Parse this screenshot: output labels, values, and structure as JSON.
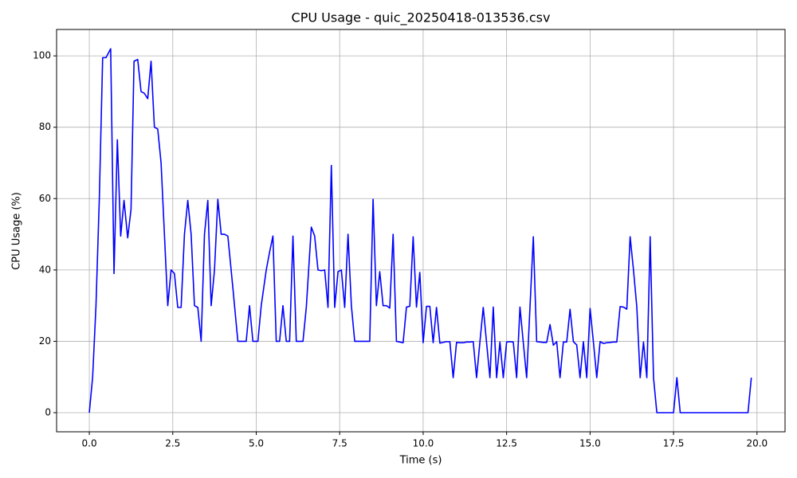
{
  "chart_data": {
    "type": "line",
    "title": "CPU Usage - quic_20250418-013536.csv",
    "x_label": "Time (s)",
    "y_label": "CPU Usage (%)",
    "x": [
      0,
      0.1,
      0.2,
      0.3,
      0.4,
      0.5,
      0.64,
      0.74,
      0.84,
      0.94,
      1.04,
      1.15,
      1.25,
      1.34,
      1.45,
      1.55,
      1.65,
      1.75,
      1.85,
      1.95,
      2.05,
      2.15,
      2.25,
      2.35,
      2.45,
      2.55,
      2.65,
      2.75,
      2.85,
      2.95,
      3.05,
      3.15,
      3.25,
      3.35,
      3.45,
      3.55,
      3.65,
      3.75,
      3.85,
      3.95,
      4.05,
      4.15,
      4.3,
      4.45,
      4.55,
      4.7,
      4.8,
      4.9,
      5.05,
      5.15,
      5.3,
      5.4,
      5.5,
      5.6,
      5.7,
      5.8,
      5.9,
      6.0,
      6.1,
      6.2,
      6.3,
      6.4,
      6.5,
      6.65,
      6.75,
      6.85,
      6.95,
      7.05,
      7.15,
      7.25,
      7.35,
      7.45,
      7.55,
      7.65,
      7.75,
      7.85,
      7.95,
      8.4,
      8.5,
      8.6,
      8.7,
      8.8,
      8.9,
      9.0,
      9.1,
      9.2,
      9.3,
      9.4,
      9.5,
      9.6,
      9.7,
      9.8,
      9.9,
      10.0,
      10.1,
      10.2,
      10.3,
      10.4,
      10.5,
      10.6,
      10.7,
      10.8,
      10.9,
      11.0,
      11.1,
      11.2,
      11.3,
      11.4,
      11.5,
      11.6,
      11.7,
      11.8,
      11.9,
      12.0,
      12.1,
      12.2,
      12.3,
      12.4,
      12.5,
      12.6,
      12.7,
      12.8,
      12.9,
      13.0,
      13.1,
      13.2,
      13.3,
      13.4,
      13.5,
      13.6,
      13.7,
      13.8,
      13.9,
      14.0,
      14.1,
      14.2,
      14.3,
      14.4,
      14.5,
      14.6,
      14.7,
      14.8,
      14.9,
      15.0,
      15.1,
      15.2,
      15.3,
      15.4,
      15.5,
      15.6,
      15.7,
      15.8,
      15.9,
      16.0,
      16.1,
      16.2,
      16.3,
      16.4,
      16.5,
      16.6,
      16.7,
      16.8,
      16.9,
      17.0,
      17.5,
      17.6,
      17.7,
      19.73,
      19.83
    ],
    "series": [
      {
        "name": "CPU",
        "color": "#0000ff",
        "values": [
          0,
          10,
          30,
          60,
          99.5,
          99.5,
          102,
          39,
          76.5,
          49.5,
          59.5,
          49,
          57,
          98.5,
          99,
          90,
          89.5,
          88,
          98.5,
          80,
          79.5,
          70,
          50,
          30,
          40,
          39,
          29.5,
          29.5,
          50,
          59.5,
          50,
          30,
          29.5,
          20,
          50,
          59.5,
          30,
          40,
          59.8,
          50,
          50,
          49.5,
          35,
          20,
          20,
          20,
          30,
          20,
          20,
          30,
          40,
          45,
          49.5,
          20,
          20,
          30,
          20,
          20,
          49.5,
          20,
          20,
          20,
          29.5,
          52,
          49.5,
          40,
          39.8,
          40,
          29.5,
          69.3,
          29.5,
          39.5,
          40,
          29.5,
          50,
          30,
          20,
          20,
          59.8,
          30,
          39.5,
          30,
          30,
          29.3,
          50,
          20,
          19.8,
          19.6,
          29.6,
          29.8,
          49.3,
          29.6,
          39.3,
          19.6,
          29.8,
          29.8,
          19.6,
          29.5,
          19.5,
          19.7,
          19.9,
          19.9,
          9.8,
          19.7,
          19.6,
          19.6,
          19.8,
          19.8,
          19.9,
          9.8,
          19.8,
          29.5,
          19.6,
          9.8,
          29.6,
          9.8,
          19.8,
          9.8,
          19.8,
          19.9,
          19.8,
          9.8,
          29.6,
          19.6,
          9.8,
          29.5,
          49.3,
          19.9,
          19.8,
          19.7,
          19.7,
          24.7,
          18.9,
          19.9,
          9.8,
          19.8,
          19.8,
          29,
          19.9,
          19,
          9.8,
          19.9,
          9.8,
          29.2,
          19.8,
          9.8,
          19.9,
          19.4,
          19.6,
          19.7,
          19.8,
          19.8,
          29.7,
          29.6,
          29,
          49.3,
          40,
          29.6,
          9.8,
          19.8,
          9.8,
          49.3,
          9.8,
          0,
          0,
          9.8,
          0,
          0,
          9.8
        ]
      }
    ],
    "xlim": [
      -0.98,
      20.84
    ],
    "ylim": [
      -5.36,
      107.4
    ],
    "xticks": [
      {
        "value": 0,
        "label": "0.0"
      },
      {
        "value": 2.5,
        "label": "2.5"
      },
      {
        "value": 5,
        "label": "5.0"
      },
      {
        "value": 7.5,
        "label": "7.5"
      },
      {
        "value": 10,
        "label": "10.0"
      },
      {
        "value": 12.5,
        "label": "12.5"
      },
      {
        "value": 15,
        "label": "15.0"
      },
      {
        "value": 17.5,
        "label": "17.5"
      },
      {
        "value": 20,
        "label": "20.0"
      }
    ],
    "yticks": [
      0,
      20,
      40,
      60,
      80,
      100
    ],
    "grid": true
  }
}
